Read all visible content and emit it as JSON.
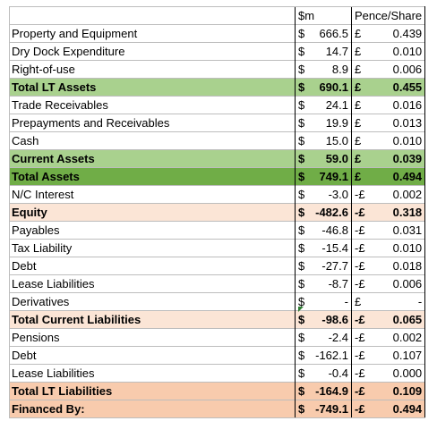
{
  "header": {
    "col1": "$m",
    "col2": "Pence/Share"
  },
  "currency_symbol": "$",
  "pound_symbol": "£",
  "neg_pound_symbol": "-£",
  "rows": [
    {
      "label": "Property and Equipment",
      "usd": "666.5",
      "gbp_sign": "£",
      "pence": "0.439",
      "style": ""
    },
    {
      "label": "Dry Dock Expenditure",
      "usd": "14.7",
      "gbp_sign": "£",
      "pence": "0.010",
      "style": ""
    },
    {
      "label": "Right-of-use",
      "usd": "8.9",
      "gbp_sign": "£",
      "pence": "0.006",
      "style": ""
    },
    {
      "label": "Total LT Assets",
      "usd": "690.1",
      "gbp_sign": "£",
      "pence": "0.455",
      "style": "green bold"
    },
    {
      "label": "Trade Receivables",
      "usd": "24.1",
      "gbp_sign": "£",
      "pence": "0.016",
      "style": ""
    },
    {
      "label": "Prepayments and Receivables",
      "usd": "19.9",
      "gbp_sign": "£",
      "pence": "0.013",
      "style": ""
    },
    {
      "label": "Cash",
      "usd": "15.0",
      "gbp_sign": "£",
      "pence": "0.010",
      "style": ""
    },
    {
      "label": "Current Assets",
      "usd": "59.0",
      "gbp_sign": "£",
      "pence": "0.039",
      "style": "green bold"
    },
    {
      "label": "Total Assets",
      "usd": "749.1",
      "gbp_sign": "£",
      "pence": "0.494",
      "style": "green2 bold"
    },
    {
      "label": "N/C Interest",
      "usd": "-3.0",
      "gbp_sign": "-£",
      "pence": "0.002",
      "style": ""
    },
    {
      "label": "Equity",
      "usd": "-482.6",
      "gbp_sign": "-£",
      "pence": "0.318",
      "style": "peach bold"
    },
    {
      "label": "Payables",
      "usd": "-46.8",
      "gbp_sign": "-£",
      "pence": "0.031",
      "style": ""
    },
    {
      "label": "Tax Liability",
      "usd": "-15.4",
      "gbp_sign": "-£",
      "pence": "0.010",
      "style": ""
    },
    {
      "label": "Debt",
      "usd": "-27.7",
      "gbp_sign": "-£",
      "pence": "0.018",
      "style": ""
    },
    {
      "label": "Lease Liabilities",
      "usd": "-8.7",
      "gbp_sign": "-£",
      "pence": "0.006",
      "style": ""
    },
    {
      "label": "Derivatives",
      "usd": "-",
      "gbp_sign": "£",
      "pence": "-",
      "style": ""
    },
    {
      "label": "Total Current Liabilities",
      "usd": "-98.6",
      "gbp_sign": "-£",
      "pence": "0.065",
      "style": "peach bold"
    },
    {
      "label": "Pensions",
      "usd": "-2.4",
      "gbp_sign": "-£",
      "pence": "0.002",
      "style": ""
    },
    {
      "label": "Debt",
      "usd": "-162.1",
      "gbp_sign": "-£",
      "pence": "0.107",
      "style": ""
    },
    {
      "label": "Lease Liabilities",
      "usd": "-0.4",
      "gbp_sign": "-£",
      "pence": "0.000",
      "style": ""
    },
    {
      "label": "Total LT Liabilities",
      "usd": "-164.9",
      "gbp_sign": "-£",
      "pence": "0.109",
      "style": "pink bold"
    },
    {
      "label": "Financed By:",
      "usd": "-749.1",
      "gbp_sign": "-£",
      "pence": "0.494",
      "style": "pink bold"
    }
  ]
}
